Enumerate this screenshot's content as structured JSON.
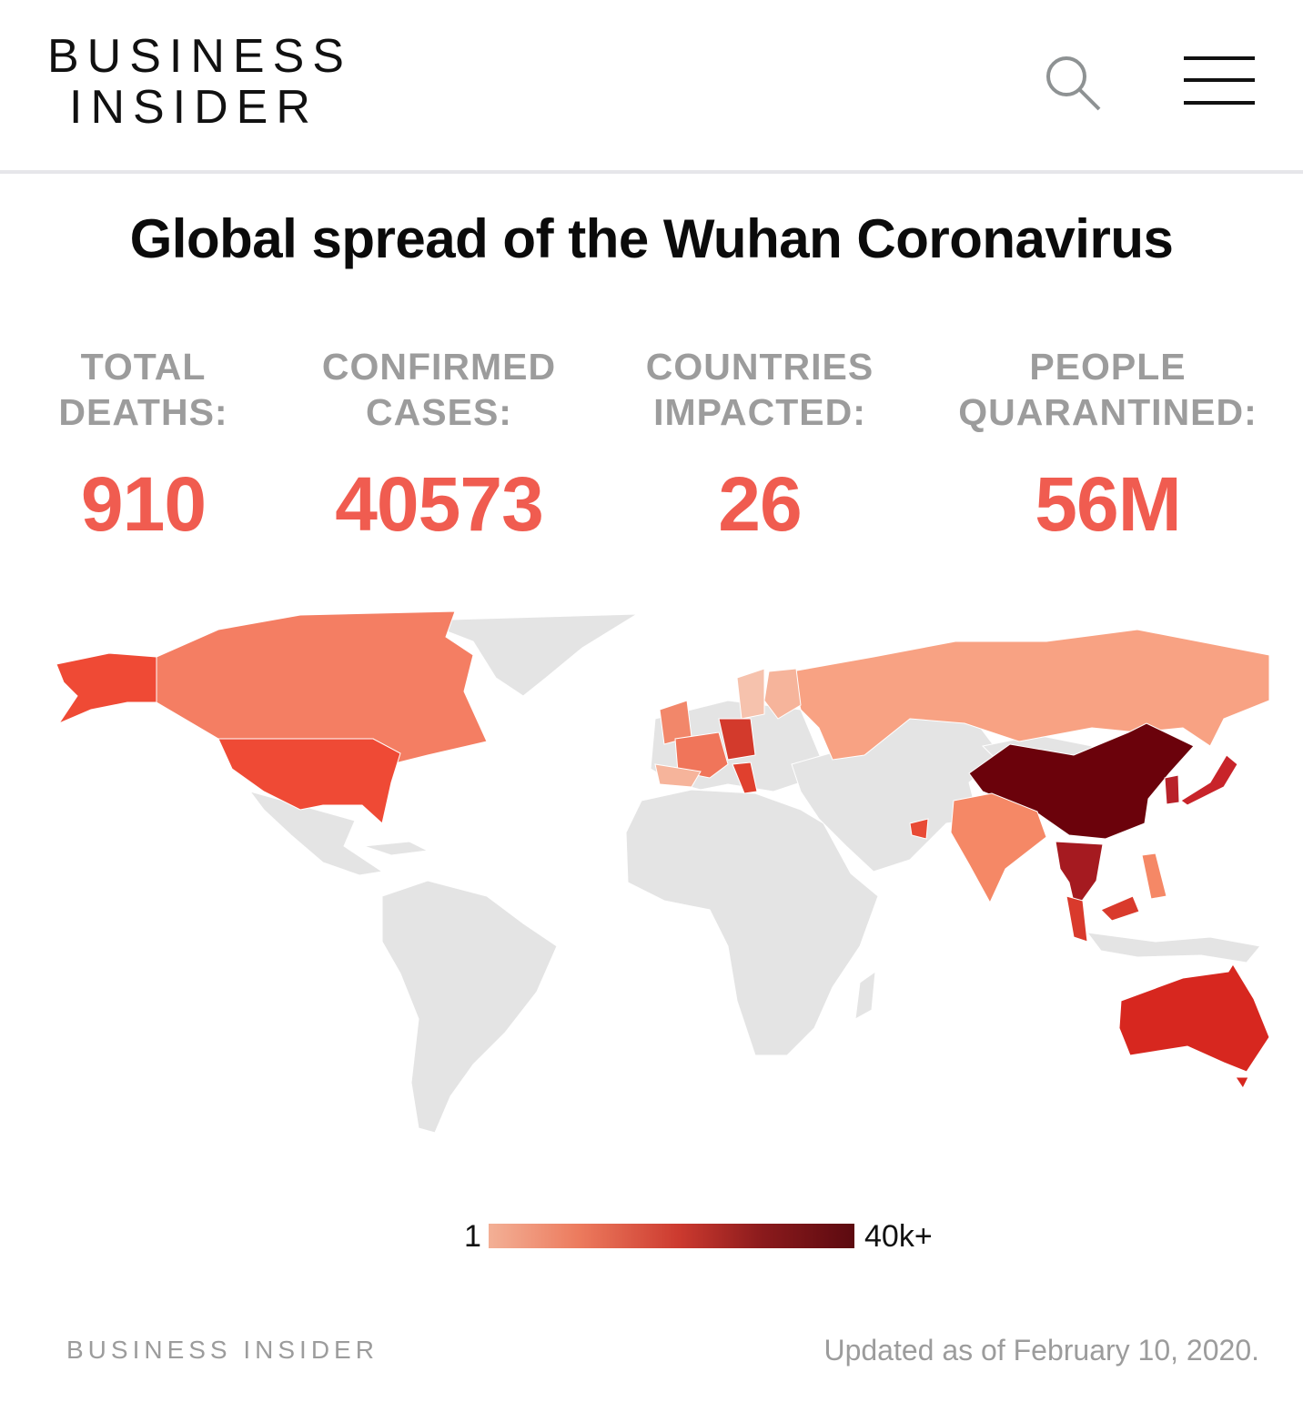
{
  "header": {
    "logo_line1": "BUSINESS",
    "logo_line2": "INSIDER",
    "search_icon": "search-icon",
    "menu_icon": "hamburger-menu-icon"
  },
  "title": "Global spread of the Wuhan Coronavirus",
  "stats": [
    {
      "label1": "TOTAL",
      "label2": "DEATHS:",
      "value": "910"
    },
    {
      "label1": "CONFIRMED",
      "label2": "CASES:",
      "value": "40573"
    },
    {
      "label1": "COUNTRIES",
      "label2": "IMPACTED:",
      "value": "26"
    },
    {
      "label1": "PEOPLE",
      "label2": "QUARANTINED:",
      "value": "56M"
    }
  ],
  "map": {
    "type": "choropleth",
    "no_data_color": "#e4e4e4",
    "shading": {
      "China": "#6b020b",
      "Thailand": "#a51a20",
      "Singapore": "#a51a20",
      "South Korea": "#b8222a",
      "Japan": "#c8242a",
      "Australia": "#d7271f",
      "Malaysia": "#d93a2c",
      "United States": "#ef4a35",
      "Germany": "#d33a2c",
      "Italy": "#e0402e",
      "Canada": "#f47e63",
      "France": "#f0755a",
      "United Kingdom": "#f2876a",
      "India": "#f58866",
      "Philippines": "#f58866",
      "United Arab Emirates": "#e84a35",
      "Russia": "#f8a283",
      "Finland": "#f6b49b",
      "Sweden": "#f6c2ad",
      "Spain": "#f6b49b",
      "Vietnam": "#c22a28"
    }
  },
  "legend": {
    "min_label": "1",
    "max_label": "40k+",
    "color_low": "#f3b096",
    "color_high": "#5c0a10"
  },
  "footer": {
    "logo": "BUSINESS INSIDER",
    "updated": "Updated as of February 10, 2020."
  }
}
